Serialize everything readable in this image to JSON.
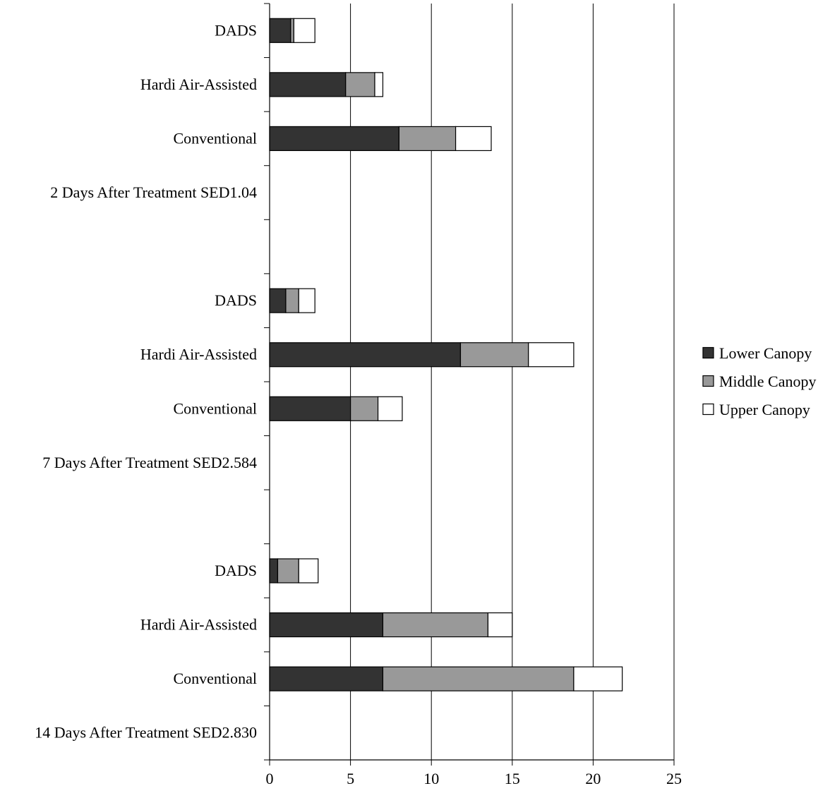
{
  "chart_data": {
    "type": "bar",
    "orientation": "horizontal",
    "stacked": true,
    "title": "",
    "xlabel": "",
    "ylabel": "",
    "xlim": [
      0,
      25
    ],
    "xticks": [
      0,
      5,
      10,
      15,
      20,
      25
    ],
    "grid": true,
    "legend_position": "right",
    "categories": [
      "DADS",
      "Hardi Air-Assisted",
      "Conventional",
      "2 Days After Treatment SED1.04",
      "",
      "DADS",
      "Hardi Air-Assisted",
      "Conventional",
      "7 Days After Treatment SED2.584",
      "",
      "DADS",
      "Hardi Air-Assisted",
      "Conventional",
      "14 Days After Treatment SED2.830"
    ],
    "series": [
      {
        "name": "Lower Canopy",
        "color": "#333333",
        "values": [
          1.3,
          4.7,
          8.0,
          null,
          null,
          1.0,
          11.8,
          5.0,
          null,
          null,
          0.5,
          7.0,
          7.0,
          null
        ]
      },
      {
        "name": "Middle Canopy",
        "color": "#999999",
        "values": [
          0.2,
          1.8,
          3.5,
          null,
          null,
          0.8,
          4.2,
          1.7,
          null,
          null,
          1.3,
          6.5,
          11.8,
          null
        ]
      },
      {
        "name": "Upper Canopy",
        "color": "#ffffff",
        "values": [
          1.3,
          0.5,
          2.2,
          null,
          null,
          1.0,
          2.8,
          1.5,
          null,
          null,
          1.2,
          1.5,
          3.0,
          null
        ]
      }
    ]
  }
}
